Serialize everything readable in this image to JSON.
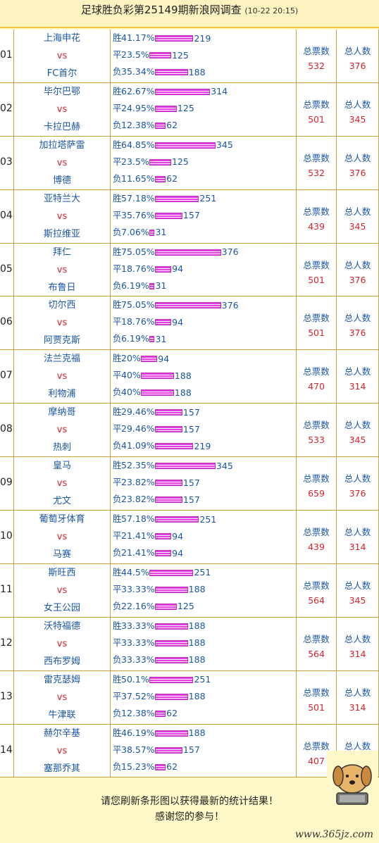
{
  "header": {
    "title": "足球胜负彩第25149期新浪网调查",
    "time": "(10-22 20:15)"
  },
  "labels": {
    "win": "胜",
    "draw": "平",
    "lose": "负",
    "vs": "vs",
    "total_votes": "总票数",
    "total_people": "总人数"
  },
  "matches": [
    {
      "no": "01",
      "home": "上海申花",
      "away": "FC首尔",
      "win_pct": "41.17%",
      "win": 219,
      "draw_pct": "23.5%",
      "draw": 125,
      "lose_pct": "35.34%",
      "lose": 188,
      "votes": "532",
      "people": "376"
    },
    {
      "no": "02",
      "home": "毕尔巴鄂",
      "away": "卡拉巴赫",
      "win_pct": "62.67%",
      "win": 314,
      "draw_pct": "24.95%",
      "draw": 125,
      "lose_pct": "12.38%",
      "lose": 62,
      "votes": "501",
      "people": "345"
    },
    {
      "no": "03",
      "home": "加拉塔萨雷",
      "away": "博德",
      "win_pct": "64.85%",
      "win": 345,
      "draw_pct": "23.5%",
      "draw": 125,
      "lose_pct": "11.65%",
      "lose": 62,
      "votes": "532",
      "people": "376"
    },
    {
      "no": "04",
      "home": "亚特兰大",
      "away": "斯拉维亚",
      "win_pct": "57.18%",
      "win": 251,
      "draw_pct": "35.76%",
      "draw": 157,
      "lose_pct": "7.06%",
      "lose": 31,
      "votes": "439",
      "people": "345"
    },
    {
      "no": "05",
      "home": "拜仁",
      "away": "布鲁日",
      "win_pct": "75.05%",
      "win": 376,
      "draw_pct": "18.76%",
      "draw": 94,
      "lose_pct": "6.19%",
      "lose": 31,
      "votes": "501",
      "people": "376"
    },
    {
      "no": "06",
      "home": "切尔西",
      "away": "阿贾克斯",
      "win_pct": "75.05%",
      "win": 376,
      "draw_pct": "18.76%",
      "draw": 94,
      "lose_pct": "6.19%",
      "lose": 31,
      "votes": "501",
      "people": "376"
    },
    {
      "no": "07",
      "home": "法兰克福",
      "away": "利物浦",
      "win_pct": "20%",
      "win": 94,
      "draw_pct": "40%",
      "draw": 188,
      "lose_pct": "40%",
      "lose": 188,
      "votes": "470",
      "people": "314"
    },
    {
      "no": "08",
      "home": "摩纳哥",
      "away": "热刺",
      "win_pct": "29.46%",
      "win": 157,
      "draw_pct": "29.46%",
      "draw": 157,
      "lose_pct": "41.09%",
      "lose": 219,
      "votes": "533",
      "people": "345"
    },
    {
      "no": "09",
      "home": "皇马",
      "away": "尤文",
      "win_pct": "52.35%",
      "win": 345,
      "draw_pct": "23.82%",
      "draw": 157,
      "lose_pct": "23.82%",
      "lose": 157,
      "votes": "659",
      "people": "376"
    },
    {
      "no": "10",
      "home": "葡萄牙体育",
      "away": "马赛",
      "win_pct": "57.18%",
      "win": 251,
      "draw_pct": "21.41%",
      "draw": 94,
      "lose_pct": "21.41%",
      "lose": 94,
      "votes": "439",
      "people": "314"
    },
    {
      "no": "11",
      "home": "斯旺西",
      "away": "女王公园",
      "win_pct": "44.5%",
      "win": 251,
      "draw_pct": "33.33%",
      "draw": 188,
      "lose_pct": "22.16%",
      "lose": 125,
      "votes": "564",
      "people": "345"
    },
    {
      "no": "12",
      "home": "沃特福德",
      "away": "西布罗姆",
      "win_pct": "33.33%",
      "win": 188,
      "draw_pct": "33.33%",
      "draw": 188,
      "lose_pct": "33.33%",
      "lose": 188,
      "votes": "564",
      "people": "314"
    },
    {
      "no": "13",
      "home": "雷克瑟姆",
      "away": "牛津联",
      "win_pct": "50.1%",
      "win": 251,
      "draw_pct": "37.52%",
      "draw": 188,
      "lose_pct": "12.38%",
      "lose": 62,
      "votes": "501",
      "people": "314"
    },
    {
      "no": "14",
      "home": "赫尔辛基",
      "away": "塞那乔其",
      "win_pct": "46.19%",
      "win": 188,
      "draw_pct": "38.57%",
      "draw": 157,
      "lose_pct": "15.23%",
      "lose": 62,
      "votes": "407",
      "people": "314"
    }
  ],
  "footer": {
    "line1": "请您刷新条形图以获得最新的统计结果！",
    "line2": "感谢您的参与！",
    "watermark": "www.365jz.com"
  },
  "colors": {
    "accent": "#f3c23a",
    "team": "#1a56a6",
    "red": "#d9232c",
    "bar": "#e23fe0"
  }
}
